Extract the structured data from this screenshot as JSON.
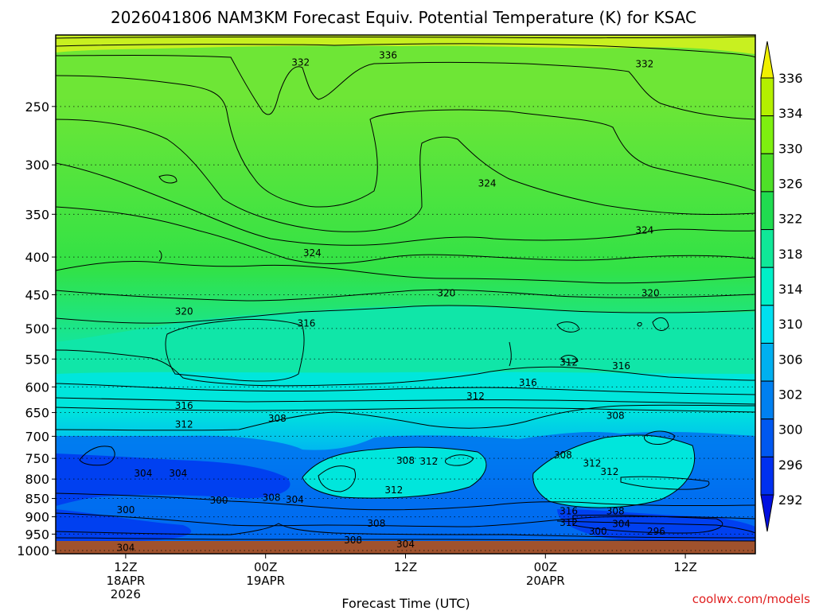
{
  "chart_data": {
    "type": "heatmap",
    "title": "2026041806 NAM3KM Forecast Equiv. Potential Temperature (K) for KSAC",
    "xlabel": "Forecast Time (UTC)",
    "ylabel": "",
    "credit": "coolwx.com/models",
    "x_ticks": [
      {
        "hour": 6,
        "lines": [
          "12Z",
          "18APR",
          "2026"
        ]
      },
      {
        "hour": 18,
        "lines": [
          "00Z",
          "19APR"
        ]
      },
      {
        "hour": 30,
        "lines": [
          "12Z"
        ]
      },
      {
        "hour": 42,
        "lines": [
          "00Z",
          "20APR"
        ]
      },
      {
        "hour": 54,
        "lines": [
          "12Z"
        ]
      }
    ],
    "xlim": [
      0,
      60
    ],
    "y_ticks": [
      250,
      300,
      350,
      400,
      450,
      500,
      550,
      600,
      650,
      700,
      750,
      800,
      850,
      900,
      950,
      1000
    ],
    "ylim": [
      1010,
      200
    ],
    "y_scale": "log",
    "grid": true,
    "colorbar": {
      "labels": [
        336,
        334,
        330,
        326,
        322,
        318,
        314,
        310,
        306,
        302,
        300,
        296,
        292
      ],
      "colors": [
        "#f0f000",
        "#b4f000",
        "#7ef010",
        "#4ee028",
        "#20dc50",
        "#10e898",
        "#00f0c8",
        "#00e0f0",
        "#00b0f0",
        "#0080f0",
        "#0058f0",
        "#0030f0",
        "#0010e0"
      ]
    },
    "field_colors": {
      "upper": "#6ee636",
      "mid_upper": "#32e246",
      "mid": "#10e6a8",
      "lower_mid": "#00e6dc",
      "lower": "#00b8f0",
      "low": "#0070f0",
      "lowest": "#0040f0",
      "ground": "#a0522d"
    },
    "contour_labels": [
      {
        "text": "336",
        "hour": 28.5,
        "p": 213
      },
      {
        "text": "332",
        "hour": 21,
        "p": 218
      },
      {
        "text": "332",
        "hour": 50.5,
        "p": 219
      },
      {
        "text": "324",
        "hour": 37,
        "p": 318
      },
      {
        "text": "324",
        "hour": 50.5,
        "p": 368
      },
      {
        "text": "324",
        "hour": 22,
        "p": 395
      },
      {
        "text": "320",
        "hour": 11,
        "p": 474
      },
      {
        "text": "320",
        "hour": 33.5,
        "p": 448
      },
      {
        "text": "320",
        "hour": 51,
        "p": 448
      },
      {
        "text": "316",
        "hour": 21.5,
        "p": 492
      },
      {
        "text": "316",
        "hour": 48.5,
        "p": 562
      },
      {
        "text": "316",
        "hour": 40.5,
        "p": 592
      },
      {
        "text": "316",
        "hour": 11,
        "p": 636
      },
      {
        "text": "312",
        "hour": 44,
        "p": 556
      },
      {
        "text": "312",
        "hour": 36,
        "p": 618
      },
      {
        "text": "312",
        "hour": 11,
        "p": 675
      },
      {
        "text": "308",
        "hour": 19,
        "p": 662
      },
      {
        "text": "308",
        "hour": 48,
        "p": 656
      },
      {
        "text": "308",
        "hour": 30,
        "p": 755
      },
      {
        "text": "312",
        "hour": 32,
        "p": 757
      },
      {
        "text": "308",
        "hour": 43.5,
        "p": 742
      },
      {
        "text": "312",
        "hour": 46,
        "p": 762
      },
      {
        "text": "312",
        "hour": 47.5,
        "p": 782
      },
      {
        "text": "304",
        "hour": 7.5,
        "p": 786
      },
      {
        "text": "304",
        "hour": 10.5,
        "p": 786
      },
      {
        "text": "312",
        "hour": 29,
        "p": 828
      },
      {
        "text": "308",
        "hour": 18.5,
        "p": 848
      },
      {
        "text": "304",
        "hour": 20.5,
        "p": 853
      },
      {
        "text": "300",
        "hour": 14,
        "p": 855
      },
      {
        "text": "300",
        "hour": 6,
        "p": 881
      },
      {
        "text": "316",
        "hour": 44,
        "p": 884
      },
      {
        "text": "308",
        "hour": 48,
        "p": 884
      },
      {
        "text": "312",
        "hour": 44,
        "p": 917
      },
      {
        "text": "308",
        "hour": 27.5,
        "p": 919
      },
      {
        "text": "304",
        "hour": 48.5,
        "p": 920
      },
      {
        "text": "300",
        "hour": 46.5,
        "p": 942
      },
      {
        "text": "296",
        "hour": 51.5,
        "p": 942
      },
      {
        "text": "308",
        "hour": 25.5,
        "p": 968
      },
      {
        "text": "304",
        "hour": 30,
        "p": 980
      },
      {
        "text": "304",
        "hour": 6,
        "p": 991
      }
    ]
  }
}
